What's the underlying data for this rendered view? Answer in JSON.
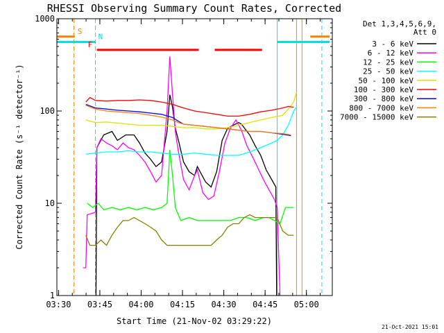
{
  "chart_data": {
    "type": "line",
    "title": "RHESSI Observing Summary Count Rates, Corrected",
    "xlabel": "Start Time (21-Nov-02 03:29:22)",
    "ylabel": "Corrected Count Rate (s⁻¹ detector⁻¹)",
    "y_scale": "log",
    "ylim": [
      1,
      1000
    ],
    "xlim_minutes": [
      0,
      100
    ],
    "x_ticks": [
      {
        "label": "03:30",
        "minute": 0.6
      },
      {
        "label": "03:45",
        "minute": 15.6
      },
      {
        "label": "04:00",
        "minute": 30.6
      },
      {
        "label": "04:15",
        "minute": 45.6
      },
      {
        "label": "04:30",
        "minute": 60.6
      },
      {
        "label": "04:45",
        "minute": 75.6
      },
      {
        "label": "05:00",
        "minute": 90.6
      }
    ],
    "y_ticks": [
      {
        "label": "1",
        "value": 1
      },
      {
        "label": "10",
        "value": 10
      },
      {
        "label": "100",
        "value": 100
      },
      {
        "label": "1000",
        "value": 1000
      }
    ],
    "legend_header": [
      "Det 1,3,4,5,6,9,",
      "Att 0"
    ],
    "legend_position": "right",
    "grid": false,
    "flags": [
      {
        "label": "S",
        "color": "#ff8000",
        "y_value": 640,
        "segments": [
          [
            0,
            6.5
          ],
          [
            92,
            99
          ]
        ]
      },
      {
        "label": "N",
        "color": "#00e0e0",
        "y_value": 560,
        "segments": [
          [
            0,
            14
          ],
          [
            80,
            99
          ]
        ]
      },
      {
        "label": "F",
        "color": "#ff0000",
        "y_value": 460,
        "segments": [
          [
            14.5,
            51.5
          ],
          [
            57.3,
            74.5
          ]
        ]
      }
    ],
    "vertical_markers": [
      {
        "minute": 6.2,
        "color": "#ff8000",
        "style": "dashed"
      },
      {
        "minute": 14.0,
        "color": "#00e0e0",
        "style": "dashed"
      },
      {
        "minute": 80.0,
        "color": "#00e0e0",
        "style": "solid"
      },
      {
        "minute": 87.0,
        "color": "#ff8000",
        "style": "solid"
      },
      {
        "minute": 89.0,
        "color": "#ff8000",
        "style": "solid"
      },
      {
        "minute": 96.2,
        "color": "#00e0e0",
        "style": "dashed"
      }
    ],
    "series": [
      {
        "name": "3 - 6 keV",
        "color": "#000000",
        "points": [
          [
            14.2,
            1
          ],
          [
            14.5,
            40
          ],
          [
            17,
            55
          ],
          [
            20,
            60
          ],
          [
            22,
            48
          ],
          [
            25,
            55
          ],
          [
            28,
            55
          ],
          [
            30,
            45
          ],
          [
            32,
            35
          ],
          [
            34,
            30
          ],
          [
            36,
            25
          ],
          [
            38,
            28
          ],
          [
            40,
            60
          ],
          [
            41,
            150
          ],
          [
            42,
            110
          ],
          [
            43,
            65
          ],
          [
            44,
            50
          ],
          [
            46,
            28
          ],
          [
            48,
            22
          ],
          [
            50,
            20
          ],
          [
            51,
            25
          ],
          [
            52,
            22
          ],
          [
            54,
            17
          ],
          [
            56,
            15
          ],
          [
            58,
            22
          ],
          [
            60,
            48
          ],
          [
            62,
            65
          ],
          [
            64,
            70
          ],
          [
            66,
            75
          ],
          [
            67,
            72
          ],
          [
            70,
            55
          ],
          [
            72,
            42
          ],
          [
            74,
            33
          ],
          [
            76,
            23
          ],
          [
            78,
            18
          ],
          [
            79.5,
            15
          ],
          [
            79.8,
            1
          ]
        ]
      },
      {
        "name": "6 - 12 keV",
        "color": "#ff00ff",
        "points": [
          [
            9.5,
            2
          ],
          [
            10.5,
            2
          ],
          [
            11,
            7.5
          ],
          [
            14,
            8
          ],
          [
            14.5,
            40
          ],
          [
            16,
            50
          ],
          [
            18,
            45
          ],
          [
            20,
            42
          ],
          [
            22,
            38
          ],
          [
            24,
            45
          ],
          [
            26,
            40
          ],
          [
            28,
            38
          ],
          [
            30,
            33
          ],
          [
            32,
            28
          ],
          [
            34,
            22
          ],
          [
            36,
            17
          ],
          [
            38,
            20
          ],
          [
            40,
            100
          ],
          [
            41,
            390
          ],
          [
            42,
            150
          ],
          [
            43,
            60
          ],
          [
            44,
            38
          ],
          [
            46,
            18
          ],
          [
            48,
            14
          ],
          [
            50,
            20
          ],
          [
            51,
            23
          ],
          [
            53,
            13
          ],
          [
            55,
            11
          ],
          [
            57,
            12
          ],
          [
            59,
            22
          ],
          [
            61,
            45
          ],
          [
            63,
            65
          ],
          [
            65,
            80
          ],
          [
            67,
            62
          ],
          [
            69,
            42
          ],
          [
            71,
            32
          ],
          [
            73,
            24
          ],
          [
            75,
            18
          ],
          [
            77,
            14
          ],
          [
            79,
            11
          ],
          [
            80,
            9
          ],
          [
            81,
            1
          ]
        ]
      },
      {
        "name": "12 - 25 keV",
        "color": "#00ff00",
        "points": [
          [
            11,
            10
          ],
          [
            13,
            9
          ],
          [
            15,
            10
          ],
          [
            17,
            8.5
          ],
          [
            20,
            9
          ],
          [
            23,
            8.5
          ],
          [
            26,
            9
          ],
          [
            29,
            8.5
          ],
          [
            32,
            9
          ],
          [
            35,
            8.5
          ],
          [
            38,
            9
          ],
          [
            40,
            10
          ],
          [
            41,
            38
          ],
          [
            42,
            20
          ],
          [
            43,
            9
          ],
          [
            45,
            6.5
          ],
          [
            48,
            7
          ],
          [
            51,
            6.5
          ],
          [
            54,
            6.5
          ],
          [
            57,
            6.5
          ],
          [
            60,
            6.5
          ],
          [
            63,
            6.5
          ],
          [
            66,
            7
          ],
          [
            69,
            7
          ],
          [
            72,
            6.5
          ],
          [
            75,
            7
          ],
          [
            77,
            7
          ],
          [
            79,
            6.5
          ],
          [
            81,
            6
          ],
          [
            83,
            9
          ],
          [
            86,
            9
          ]
        ]
      },
      {
        "name": "25 - 50 keV",
        "color": "#00ffff",
        "points": [
          [
            10.5,
            34
          ],
          [
            14,
            35
          ],
          [
            18,
            36
          ],
          [
            22,
            36
          ],
          [
            26,
            37
          ],
          [
            30,
            36
          ],
          [
            34,
            36
          ],
          [
            38,
            35
          ],
          [
            42,
            34
          ],
          [
            46,
            34
          ],
          [
            50,
            35
          ],
          [
            54,
            34
          ],
          [
            58,
            33
          ],
          [
            62,
            33
          ],
          [
            66,
            33
          ],
          [
            70,
            36
          ],
          [
            74,
            40
          ],
          [
            78,
            45
          ],
          [
            80,
            48
          ],
          [
            82,
            55
          ],
          [
            84,
            70
          ],
          [
            86,
            100
          ],
          [
            87,
            110
          ]
        ]
      },
      {
        "name": "50 - 100 keV",
        "color": "#e0e000",
        "points": [
          [
            10.5,
            80
          ],
          [
            14,
            75
          ],
          [
            18,
            76
          ],
          [
            22,
            74
          ],
          [
            26,
            72
          ],
          [
            30,
            70
          ],
          [
            34,
            70
          ],
          [
            38,
            70
          ],
          [
            42,
            68
          ],
          [
            46,
            66
          ],
          [
            50,
            66
          ],
          [
            54,
            64
          ],
          [
            58,
            64
          ],
          [
            62,
            66
          ],
          [
            66,
            70
          ],
          [
            70,
            75
          ],
          [
            74,
            80
          ],
          [
            78,
            85
          ],
          [
            82,
            90
          ],
          [
            84,
            105
          ],
          [
            86,
            125
          ],
          [
            87,
            160
          ]
        ]
      },
      {
        "name": "100 - 300 keV",
        "color": "#ff0000",
        "points": [
          [
            10.5,
            125
          ],
          [
            12,
            140
          ],
          [
            14,
            130
          ],
          [
            18,
            128
          ],
          [
            22,
            130
          ],
          [
            26,
            130
          ],
          [
            30,
            132
          ],
          [
            34,
            130
          ],
          [
            38,
            125
          ],
          [
            42,
            118
          ],
          [
            46,
            108
          ],
          [
            50,
            100
          ],
          [
            54,
            96
          ],
          [
            58,
            92
          ],
          [
            62,
            88
          ],
          [
            66,
            88
          ],
          [
            70,
            92
          ],
          [
            74,
            98
          ],
          [
            78,
            102
          ],
          [
            82,
            108
          ],
          [
            84,
            112
          ],
          [
            86,
            110
          ]
        ]
      },
      {
        "name": "300 - 800 keV",
        "color": "#0000ff",
        "points": [
          [
            10.5,
            118
          ],
          [
            14,
            108
          ],
          [
            18,
            105
          ],
          [
            22,
            102
          ],
          [
            26,
            100
          ],
          [
            30,
            98
          ],
          [
            34,
            95
          ],
          [
            38,
            92
          ],
          [
            42,
            85
          ],
          [
            44,
            78
          ],
          [
            46,
            72
          ],
          [
            50,
            70
          ],
          [
            54,
            68
          ],
          [
            58,
            66
          ],
          [
            62,
            64
          ],
          [
            66,
            62
          ],
          [
            70,
            60
          ],
          [
            74,
            60
          ],
          [
            78,
            58
          ],
          [
            82,
            56
          ],
          [
            85,
            54
          ]
        ]
      },
      {
        "name": "800 - 7000 keV",
        "color": "#ff8000",
        "points": [
          [
            10.5,
            115
          ],
          [
            14,
            105
          ],
          [
            18,
            100
          ],
          [
            22,
            98
          ],
          [
            26,
            96
          ],
          [
            30,
            94
          ],
          [
            34,
            90
          ],
          [
            38,
            86
          ],
          [
            42,
            80
          ],
          [
            44,
            75
          ],
          [
            46,
            72
          ],
          [
            50,
            70
          ],
          [
            54,
            68
          ],
          [
            58,
            66
          ],
          [
            62,
            64
          ],
          [
            66,
            62
          ],
          [
            70,
            60
          ],
          [
            74,
            60
          ],
          [
            78,
            58
          ],
          [
            82,
            57
          ],
          [
            85,
            55
          ]
        ]
      },
      {
        "name": "7000 - 15000 keV",
        "color": "#808000",
        "points": [
          [
            10.5,
            4.5
          ],
          [
            12,
            3.5
          ],
          [
            14,
            3.5
          ],
          [
            16,
            4
          ],
          [
            18,
            3.5
          ],
          [
            20,
            4.5
          ],
          [
            22,
            5.5
          ],
          [
            24,
            6.5
          ],
          [
            26,
            6.5
          ],
          [
            28,
            7
          ],
          [
            30,
            6.5
          ],
          [
            32,
            6
          ],
          [
            34,
            5.5
          ],
          [
            36,
            5
          ],
          [
            38,
            4
          ],
          [
            40,
            3.5
          ],
          [
            42,
            3.5
          ],
          [
            44,
            3.5
          ],
          [
            46,
            3.5
          ],
          [
            48,
            3.5
          ],
          [
            50,
            3.5
          ],
          [
            52,
            3.5
          ],
          [
            54,
            3.5
          ],
          [
            56,
            3.5
          ],
          [
            58,
            4
          ],
          [
            60,
            4.5
          ],
          [
            62,
            5.5
          ],
          [
            64,
            6
          ],
          [
            66,
            6
          ],
          [
            68,
            7
          ],
          [
            70,
            7.5
          ],
          [
            72,
            7
          ],
          [
            74,
            7
          ],
          [
            76,
            7
          ],
          [
            78,
            7
          ],
          [
            80,
            7
          ],
          [
            82,
            5
          ],
          [
            84,
            4.5
          ],
          [
            86,
            4.5
          ]
        ]
      }
    ]
  },
  "footer": {
    "timestamp": "21-Oct-2021 15:01"
  }
}
